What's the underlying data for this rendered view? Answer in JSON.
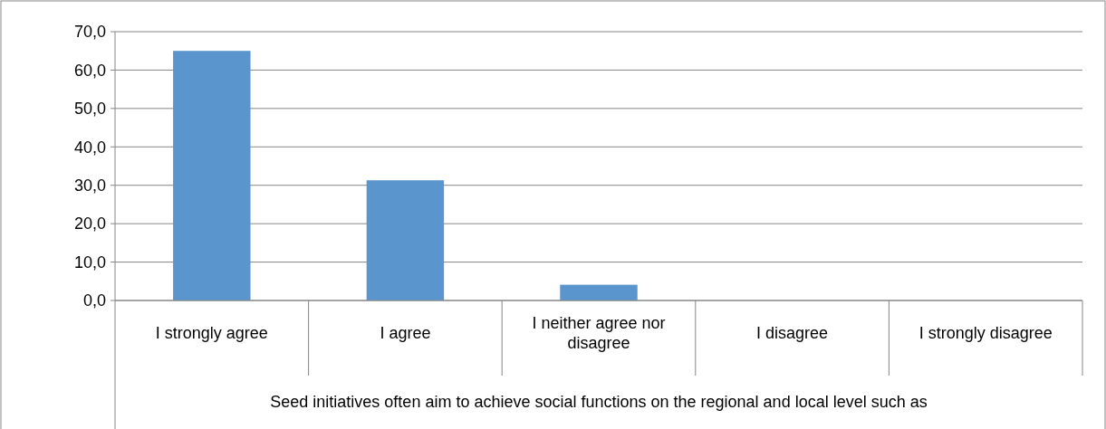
{
  "chart_data": {
    "type": "bar",
    "categories": [
      "I strongly agree",
      "I agree",
      "I neither agree nor disagree",
      "I disagree",
      "I strongly disagree"
    ],
    "values": [
      65.0,
      31.3,
      4.1,
      0,
      0
    ],
    "color": "#5b95cd",
    "xlabel": "Seed initiatives often aim to achieve social functions on the regional and local level such as",
    "ylim": [
      0,
      70
    ],
    "yticks": [
      {
        "value": 0,
        "label": "0,0"
      },
      {
        "value": 10,
        "label": "10,0"
      },
      {
        "value": 20,
        "label": "20,0"
      },
      {
        "value": 30,
        "label": "30,0"
      },
      {
        "value": 40,
        "label": "40,0"
      },
      {
        "value": 50,
        "label": "50,0"
      },
      {
        "value": 60,
        "label": "60,0"
      },
      {
        "value": 70,
        "label": "70,0"
      }
    ],
    "grid": "y"
  }
}
